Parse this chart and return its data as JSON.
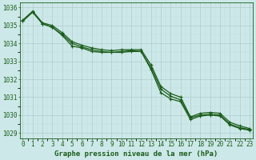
{
  "xlabel": "Graphe pression niveau de la mer (hPa)",
  "ylim": [
    1028.7,
    1036.3
  ],
  "xlim": [
    -0.3,
    23.3
  ],
  "yticks": [
    1029,
    1030,
    1031,
    1032,
    1033,
    1034,
    1035,
    1036
  ],
  "xticks": [
    0,
    1,
    2,
    3,
    4,
    5,
    6,
    7,
    8,
    9,
    10,
    11,
    12,
    13,
    14,
    15,
    16,
    17,
    18,
    19,
    20,
    21,
    22,
    23
  ],
  "bg_color": "#cce8e8",
  "grid_major_color": "#b0cccc",
  "grid_minor_color": "#c0dddd",
  "line_color": "#1a5c1a",
  "line1": [
    1035.25,
    1035.75,
    1035.1,
    1034.9,
    1034.45,
    1033.85,
    1033.75,
    1033.55,
    1033.5,
    1033.5,
    1033.5,
    1033.55,
    1033.55,
    1032.55,
    1031.25,
    1030.9,
    1030.75,
    1029.75,
    1029.95,
    1030.0,
    1029.95,
    1029.45,
    1029.25,
    1029.15
  ],
  "line2": [
    1035.25,
    1035.75,
    1035.1,
    1034.9,
    1034.5,
    1034.0,
    1033.8,
    1033.65,
    1033.55,
    1033.5,
    1033.55,
    1033.6,
    1033.55,
    1032.65,
    1031.45,
    1031.05,
    1030.85,
    1029.85,
    1030.0,
    1030.05,
    1030.0,
    1029.5,
    1029.3,
    1029.2
  ],
  "line3": [
    1035.3,
    1035.8,
    1035.15,
    1035.0,
    1034.6,
    1034.1,
    1033.9,
    1033.75,
    1033.65,
    1033.6,
    1033.65,
    1033.65,
    1033.65,
    1032.8,
    1031.6,
    1031.2,
    1031.0,
    1029.9,
    1030.1,
    1030.15,
    1030.1,
    1029.6,
    1029.4,
    1029.25
  ],
  "marker": "+",
  "markersize": 3,
  "linewidth": 0.9,
  "tick_fontsize": 5.5,
  "xlabel_fontsize": 6.5
}
